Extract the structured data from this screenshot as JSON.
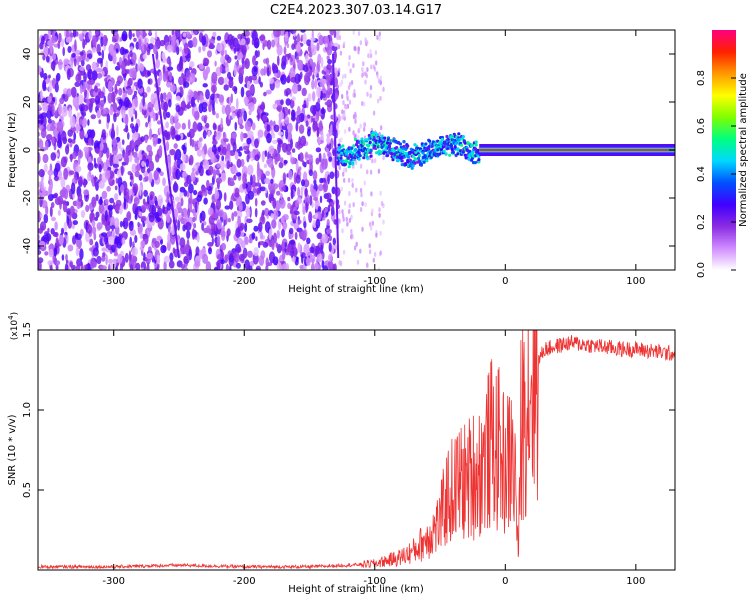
{
  "title": "C2E4.2023.307.03.14.G17",
  "chart_data": [
    {
      "type": "heatmap",
      "title": "C2E4.2023.307.03.14.G17",
      "xlabel": "Height of straight line (km)",
      "ylabel": "Frequency (Hz)",
      "xlim": [
        -358,
        130
      ],
      "ylim": [
        -50,
        50
      ],
      "xticks": [
        -300,
        -200,
        -100,
        0,
        100
      ],
      "yticks": [
        -40,
        -20,
        0,
        20,
        40
      ],
      "grid": false,
      "description_regions": [
        {
          "x_range": [
            -358,
            -128
          ],
          "value": "broadband noise, amplitude ~0.05–0.25, all frequencies"
        },
        {
          "x_range": [
            -128,
            -20
          ],
          "value": "wandering signal around 0 Hz (±8 Hz), amplitude ~0.3–0.6"
        },
        {
          "x_range": [
            -20,
            130
          ],
          "value": "stable tone at ~0 Hz, amplitude ~0.8–1.0"
        }
      ],
      "colorbar": {
        "label": "Normalized spectral amplitude",
        "range": [
          0,
          1
        ],
        "ticks": [
          0.0,
          0.2,
          0.4,
          0.6,
          0.8
        ],
        "colors": [
          "#ffffff",
          "#d08cff",
          "#8a2be2",
          "#4000ff",
          "#0050ff",
          "#00d8ff",
          "#00ff7f",
          "#7fff00",
          "#ffff00",
          "#ff9900",
          "#ff2000",
          "#ff0080"
        ]
      }
    },
    {
      "type": "line",
      "xlabel": "Height of straight line (km)",
      "ylabel": "SNR (10 * v/v)",
      "yscale_label": "(x10",
      "yscale_exp": "4",
      "yscale_close": ")",
      "xlim": [
        -358,
        130
      ],
      "ylim": [
        0,
        1.5
      ],
      "xticks": [
        -300,
        -200,
        -100,
        0,
        100
      ],
      "yticks": [
        0.5,
        1.0,
        1.5
      ],
      "color": "#ee3333",
      "grid": false,
      "series": [
        {
          "x": [
            -358,
            -300,
            -250,
            -200,
            -150,
            -120,
            -100,
            -80,
            -70,
            -60,
            -50,
            -45,
            -40,
            -35,
            -30,
            -25,
            -20,
            -15,
            -10,
            -5,
            0,
            5,
            8,
            10,
            12,
            15,
            20,
            25,
            30,
            40,
            50,
            60,
            70,
            80,
            90,
            100,
            110,
            120,
            130
          ],
          "values": [
            0.02,
            0.02,
            0.03,
            0.02,
            0.02,
            0.03,
            0.04,
            0.08,
            0.12,
            0.2,
            0.3,
            0.45,
            0.5,
            0.55,
            0.55,
            0.6,
            0.62,
            0.7,
            0.8,
            0.75,
            0.65,
            0.7,
            0.55,
            0.05,
            0.9,
            1.05,
            1.2,
            1.3,
            1.38,
            1.4,
            1.42,
            1.41,
            1.4,
            1.39,
            1.38,
            1.38,
            1.37,
            1.36,
            1.35
          ]
        }
      ]
    }
  ]
}
